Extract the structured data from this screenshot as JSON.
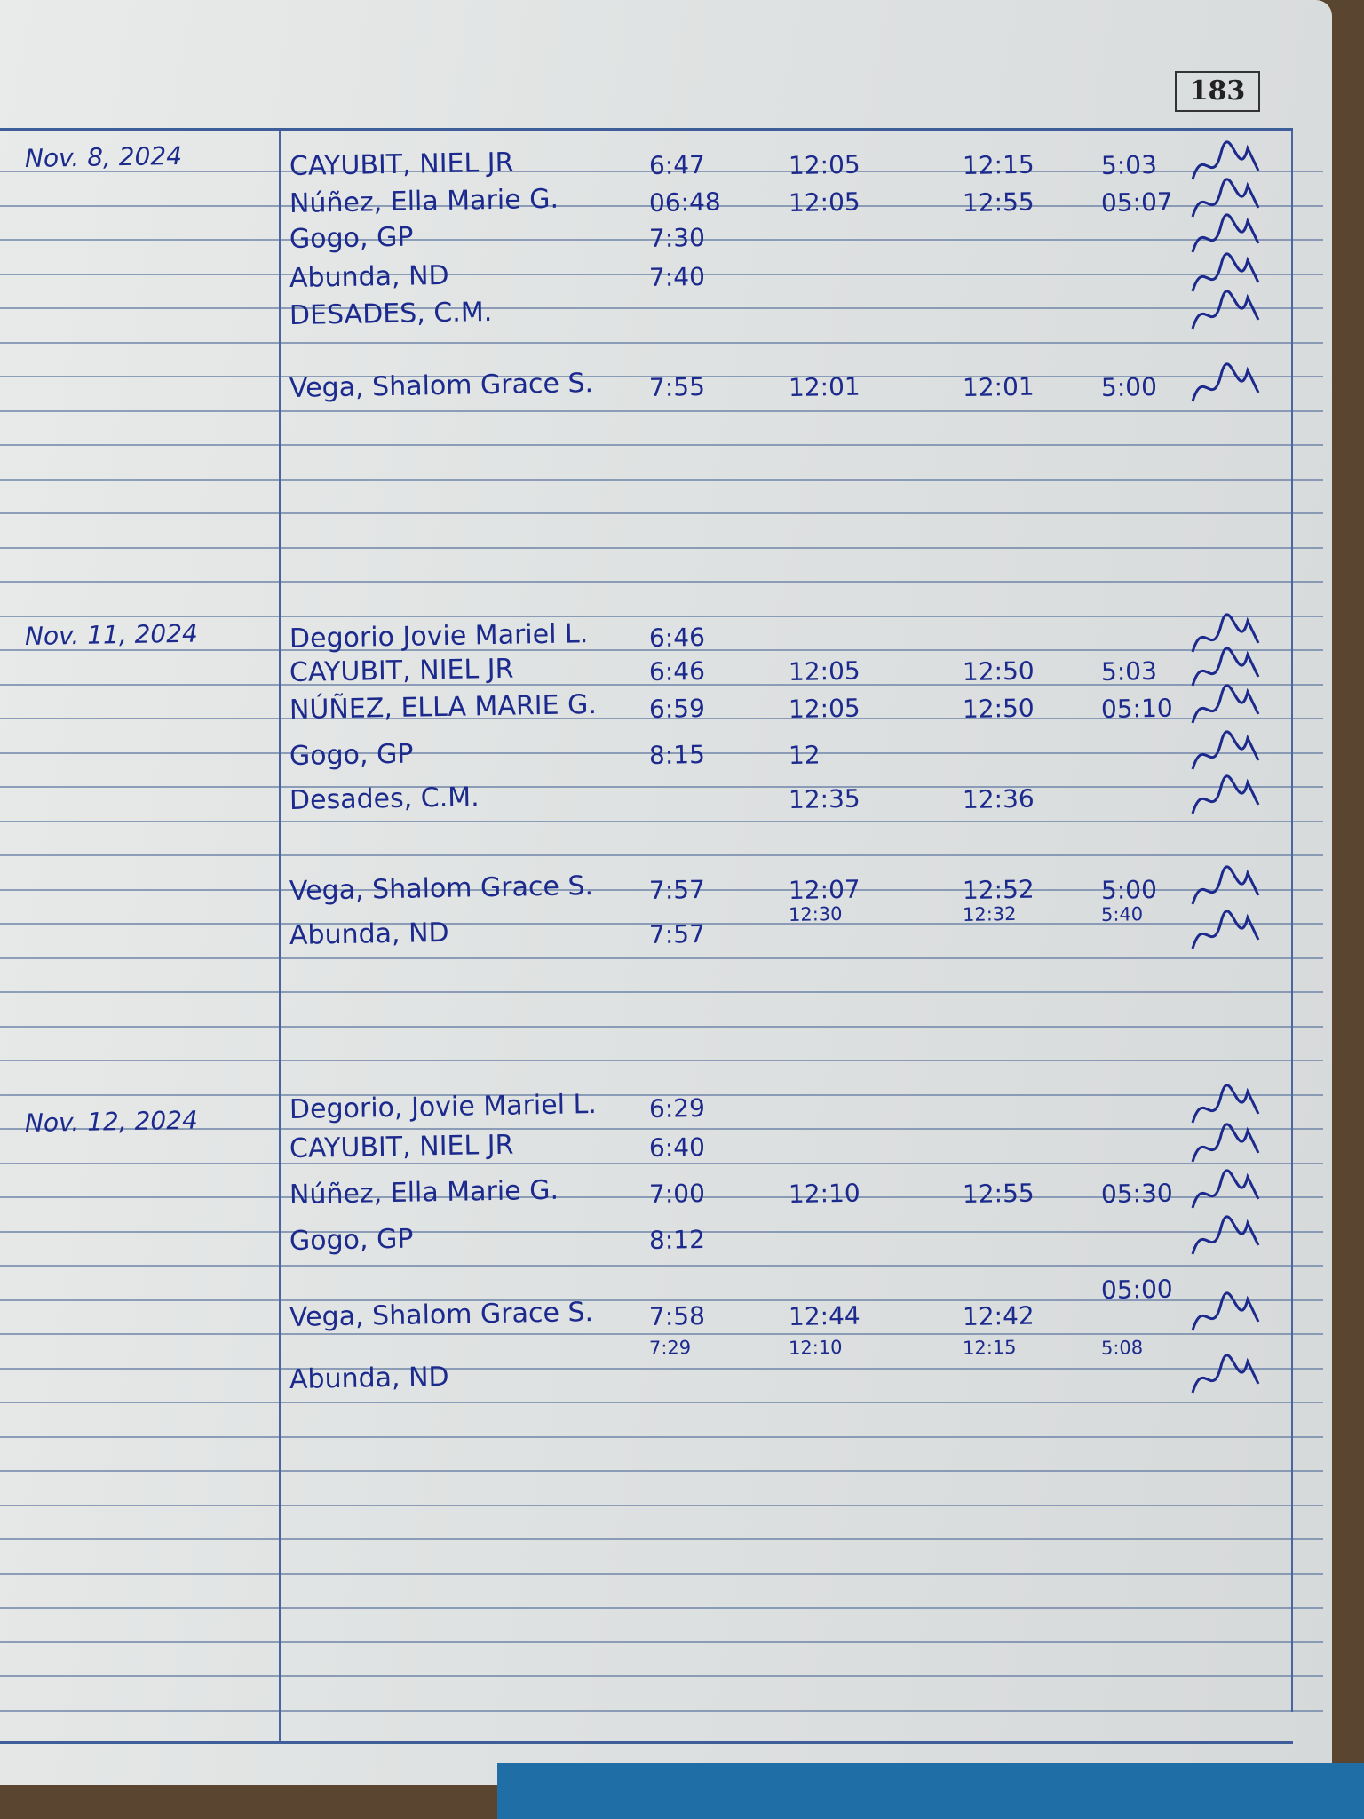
{
  "page_number": "183",
  "sections": [
    {
      "date": "Nov. 8, 2024",
      "rows": [
        {
          "name": "CAYUBIT, NIEL JR",
          "am_in": "6:47",
          "am_out": "12:05",
          "pm_in": "12:15",
          "pm_out": "5:03"
        },
        {
          "name": "Núñez, Ella Marie G.",
          "am_in": "06:48",
          "am_out": "12:05",
          "pm_in": "12:55",
          "pm_out": "05:07"
        },
        {
          "name": "Gogo, GP",
          "am_in": "7:30",
          "am_out": "",
          "pm_in": "",
          "pm_out": ""
        },
        {
          "name": "Abunda, ND",
          "am_in": "7:40",
          "am_out": "",
          "pm_in": "",
          "pm_out": ""
        },
        {
          "name": "DESADES, C.M.",
          "am_in": "",
          "am_out": "",
          "pm_in": "",
          "pm_out": ""
        },
        {
          "name": "Vega, Shalom Grace S.",
          "am_in": "7:55",
          "am_out": "12:01",
          "pm_in": "12:01",
          "pm_out": "5:00"
        }
      ]
    },
    {
      "date": "Nov. 11, 2024",
      "rows": [
        {
          "name": "Degorio Jovie Mariel L.",
          "am_in": "6:46",
          "am_out": "",
          "pm_in": "",
          "pm_out": ""
        },
        {
          "name": "CAYUBIT, NIEL JR",
          "am_in": "6:46",
          "am_out": "12:05",
          "pm_in": "12:50",
          "pm_out": "5:03"
        },
        {
          "name": "NÚÑEZ, ELLA MARIE G.",
          "am_in": "6:59",
          "am_out": "12:05",
          "pm_in": "12:50",
          "pm_out": "05:10"
        },
        {
          "name": "Gogo, GP",
          "am_in": "8:15",
          "am_out": "12",
          "pm_in": "",
          "pm_out": ""
        },
        {
          "name": "Desades, C.M.",
          "am_in": "",
          "am_out": "12:35",
          "pm_in": "12:36",
          "pm_out": ""
        },
        {
          "name": "Vega, Shalom Grace S.",
          "am_in": "7:57",
          "am_out": "12:07",
          "pm_in": "12:52",
          "pm_out": "5:00"
        },
        {
          "name": "",
          "am_in": "",
          "am_out": "12:30",
          "pm_in": "12:32",
          "pm_out": "5:40"
        },
        {
          "name": "Abunda, ND",
          "am_in": "7:57",
          "am_out": "",
          "pm_in": "",
          "pm_out": ""
        }
      ]
    },
    {
      "date": "Nov. 12, 2024",
      "rows": [
        {
          "name": "Degorio, Jovie Mariel L.",
          "am_in": "6:29",
          "am_out": "",
          "pm_in": "",
          "pm_out": ""
        },
        {
          "name": "CAYUBIT, NIEL JR",
          "am_in": "6:40",
          "am_out": "",
          "pm_in": "",
          "pm_out": ""
        },
        {
          "name": "Núñez, Ella Marie G.",
          "am_in": "7:00",
          "am_out": "12:10",
          "pm_in": "12:55",
          "pm_out": "05:30"
        },
        {
          "name": "Gogo, GP",
          "am_in": "8:12",
          "am_out": "",
          "pm_in": "",
          "pm_out": ""
        },
        {
          "name": "",
          "am_in": "",
          "am_out": "",
          "pm_in": "",
          "pm_out": "05:00"
        },
        {
          "name": "Vega, Shalom Grace S.",
          "am_in": "7:58",
          "am_out": "12:44",
          "pm_in": "12:42",
          "pm_out": ""
        },
        {
          "name": "",
          "am_in": "7:29",
          "am_out": "12:10",
          "pm_in": "12:15",
          "pm_out": "5:08"
        },
        {
          "name": "Abunda, ND",
          "am_in": "",
          "am_out": "",
          "pm_in": "",
          "pm_out": ""
        }
      ]
    }
  ],
  "colors": {
    "ink": "#1b2a8c",
    "rule": "#6f84a8",
    "paper": "#e4e6e6"
  }
}
